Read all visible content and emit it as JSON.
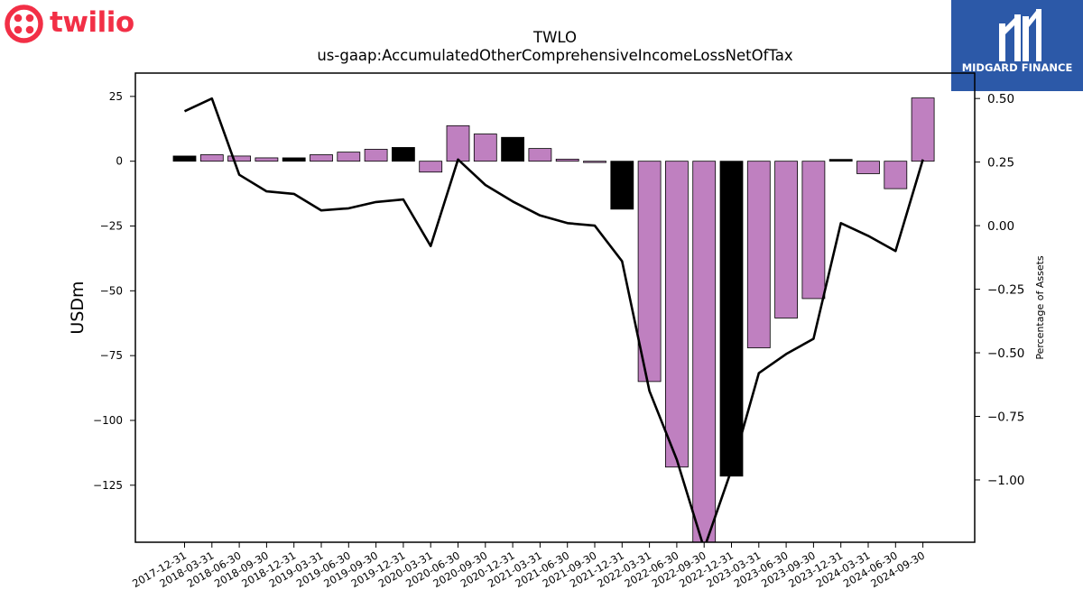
{
  "branding": {
    "left_logo_text": "twilio",
    "right_logo_text": "MIDGARD FINANCE",
    "twilio_color": "#f22f46",
    "midgard_color": "#2c59a8"
  },
  "chart_data": {
    "type": "bar",
    "title": "TWLO",
    "subtitle": "us-gaap:AccumulatedOtherComprehensiveIncomeLossNetOfTax",
    "ylabel": "USDm",
    "y2label": "Percentage of Assets",
    "ylim": [
      -147,
      34
    ],
    "y2lim": [
      -1.245,
      0.6
    ],
    "yticks": [
      25,
      0,
      -25,
      -50,
      -75,
      -100,
      -125
    ],
    "y2ticks": [
      0.5,
      0.25,
      0.0,
      -0.25,
      -0.5,
      -0.75,
      -1.0
    ],
    "y2tick_labels": [
      "0.50",
      "0.25",
      "0.00",
      "−0.25",
      "−0.50",
      "−0.75",
      "−1.00"
    ],
    "ytick_labels": [
      "25",
      "0",
      "−25",
      "−50",
      "−75",
      "−100",
      "−125"
    ],
    "categories": [
      "2017-12-31",
      "2018-03-31",
      "2018-06-30",
      "2018-09-30",
      "2018-12-31",
      "2019-03-31",
      "2019-06-30",
      "2019-09-30",
      "2019-12-31",
      "2020-03-31",
      "2020-06-30",
      "2020-09-30",
      "2020-12-31",
      "2021-03-31",
      "2021-06-30",
      "2021-09-30",
      "2021-12-31",
      "2022-03-31",
      "2022-06-30",
      "2022-09-30",
      "2022-12-31",
      "2023-03-31",
      "2023-06-30",
      "2023-09-30",
      "2023-12-31",
      "2024-03-31",
      "2024-06-30",
      "2024-09-30"
    ],
    "series": [
      {
        "kind": "bar",
        "values": [
          2.0,
          2.5,
          2.0,
          1.3,
          1.3,
          2.5,
          3.5,
          4.6,
          5.3,
          -4.2,
          13.7,
          10.5,
          9.2,
          4.9,
          0.8,
          -0.5,
          -18.5,
          -85.0,
          -118.0,
          -151.0,
          -121.5,
          -72.0,
          -60.5,
          -53.0,
          0.7,
          -4.8,
          -10.6,
          24.4
        ],
        "colors": [
          "#000000",
          "#bf80c0",
          "#bf80c0",
          "#bf80c0",
          "#000000",
          "#bf80c0",
          "#bf80c0",
          "#bf80c0",
          "#000000",
          "#bf80c0",
          "#bf80c0",
          "#bf80c0",
          "#000000",
          "#bf80c0",
          "#bf80c0",
          "#bf80c0",
          "#000000",
          "#bf80c0",
          "#bf80c0",
          "#bf80c0",
          "#000000",
          "#bf80c0",
          "#bf80c0",
          "#bf80c0",
          "#000000",
          "#bf80c0",
          "#bf80c0",
          "#bf80c0"
        ]
      },
      {
        "kind": "line",
        "axis": "right",
        "color": "#000000",
        "values": [
          0.45,
          0.5,
          0.2,
          0.135,
          0.125,
          0.06,
          0.068,
          0.093,
          0.103,
          -0.08,
          0.26,
          0.16,
          0.095,
          0.04,
          0.01,
          0.0,
          -0.14,
          -0.65,
          -0.92,
          -1.27,
          -0.96,
          -0.58,
          -0.505,
          -0.445,
          0.01,
          -0.04,
          -0.1,
          0.26
        ]
      }
    ],
    "colors": {
      "bar_fill": "#bf80c0",
      "bar_highlight": "#000000",
      "line": "#000000"
    }
  }
}
